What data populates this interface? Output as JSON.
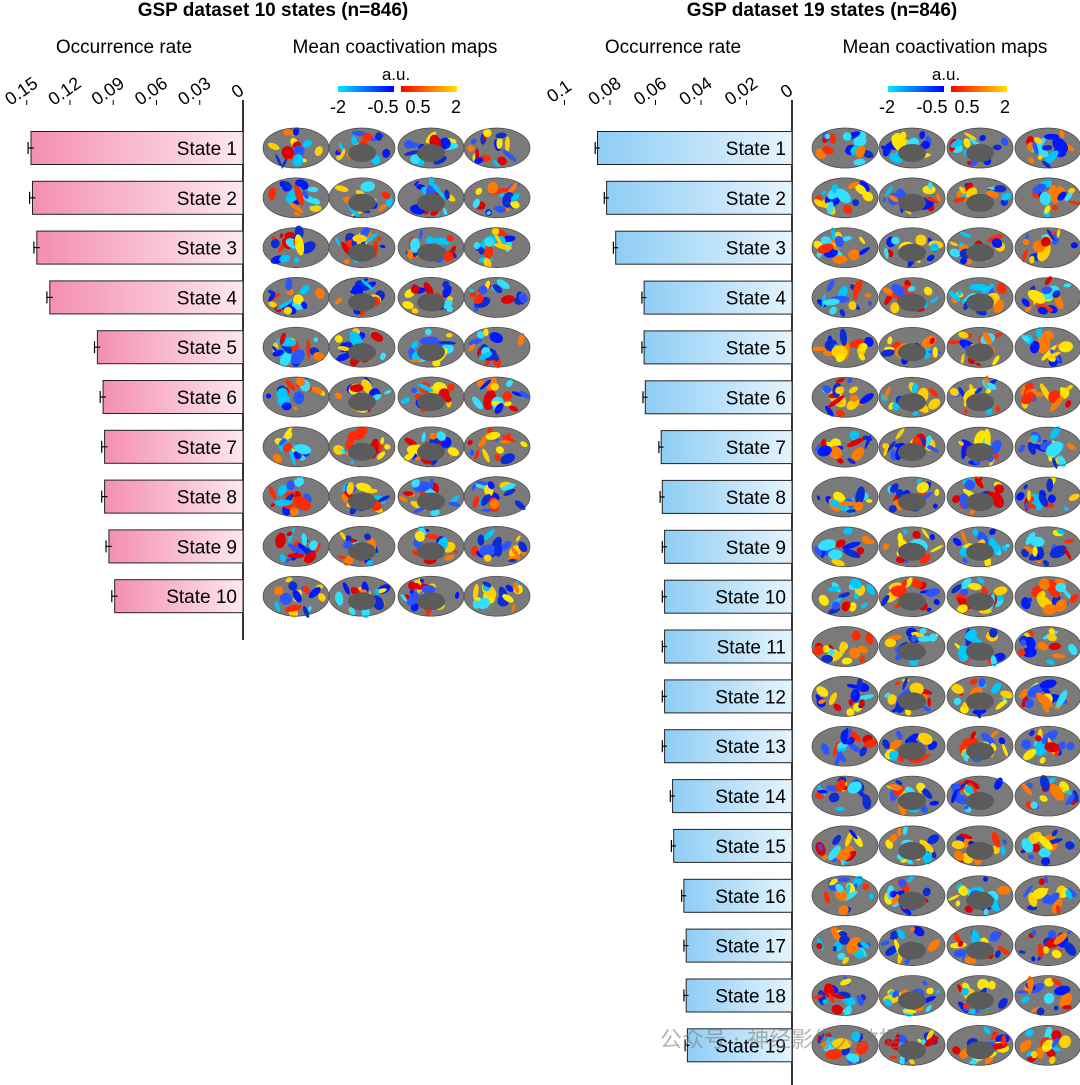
{
  "watermark": "公众号 · 神经影像大数据",
  "chart_data": [
    {
      "type": "bar",
      "orientation": "horizontal",
      "title": "GSP dataset 10 states (n=846)",
      "xlabel": "Occurrence rate",
      "x_axis_reversed": true,
      "xlim": [
        0,
        0.16
      ],
      "xticks": [
        "0.15",
        "0.12",
        "0.09",
        "0.06",
        "0.03",
        "0"
      ],
      "bar_color": "#f48fb1",
      "categories": [
        "State 1",
        "State 2",
        "State 3",
        "State 4",
        "State 5",
        "State 6",
        "State 7",
        "State 8",
        "State 9",
        "State 10"
      ],
      "values": [
        0.147,
        0.146,
        0.143,
        0.134,
        0.101,
        0.097,
        0.096,
        0.096,
        0.093,
        0.089
      ],
      "error": [
        0.002,
        0.002,
        0.002,
        0.002,
        0.002,
        0.002,
        0.002,
        0.002,
        0.002,
        0.002
      ],
      "maps_title": "Mean coactivation maps",
      "colorbar": {
        "unit": "a.u.",
        "ticks": [
          "-2",
          "-0.5",
          "0.5",
          "2"
        ],
        "negative_colors": [
          "#00e5ff",
          "#0000ff"
        ],
        "positive_colors": [
          "#ff0000",
          "#ffe000"
        ]
      }
    },
    {
      "type": "bar",
      "orientation": "horizontal",
      "title": "GSP dataset 19 states (n=846)",
      "xlabel": "Occurrence rate",
      "x_axis_reversed": true,
      "xlim": [
        0,
        0.1
      ],
      "xticks": [
        "0.1",
        "0.08",
        "0.06",
        "0.04",
        "0.02",
        "0"
      ],
      "bar_color": "#90caf9",
      "categories": [
        "State 1",
        "State 2",
        "State 3",
        "State 4",
        "State 5",
        "State 6",
        "State 7",
        "State 8",
        "State 9",
        "State 10",
        "State 11",
        "State 12",
        "State 13",
        "State 14",
        "State 15",
        "State 16",
        "State 17",
        "State 18",
        "State 19"
      ],
      "values": [
        0.0855,
        0.0815,
        0.0775,
        0.065,
        0.065,
        0.0645,
        0.0575,
        0.057,
        0.056,
        0.056,
        0.056,
        0.056,
        0.056,
        0.0525,
        0.052,
        0.0475,
        0.0465,
        0.0465,
        0.046
      ],
      "error": [
        0.001,
        0.001,
        0.001,
        0.001,
        0.001,
        0.001,
        0.001,
        0.001,
        0.001,
        0.001,
        0.001,
        0.001,
        0.001,
        0.001,
        0.001,
        0.001,
        0.001,
        0.001,
        0.001
      ],
      "maps_title": "Mean coactivation maps",
      "colorbar": {
        "unit": "a.u.",
        "ticks": [
          "-2",
          "-0.5",
          "0.5",
          "2"
        ],
        "negative_colors": [
          "#00e5ff",
          "#0000ff"
        ],
        "positive_colors": [
          "#ff0000",
          "#ffe000"
        ]
      }
    }
  ]
}
